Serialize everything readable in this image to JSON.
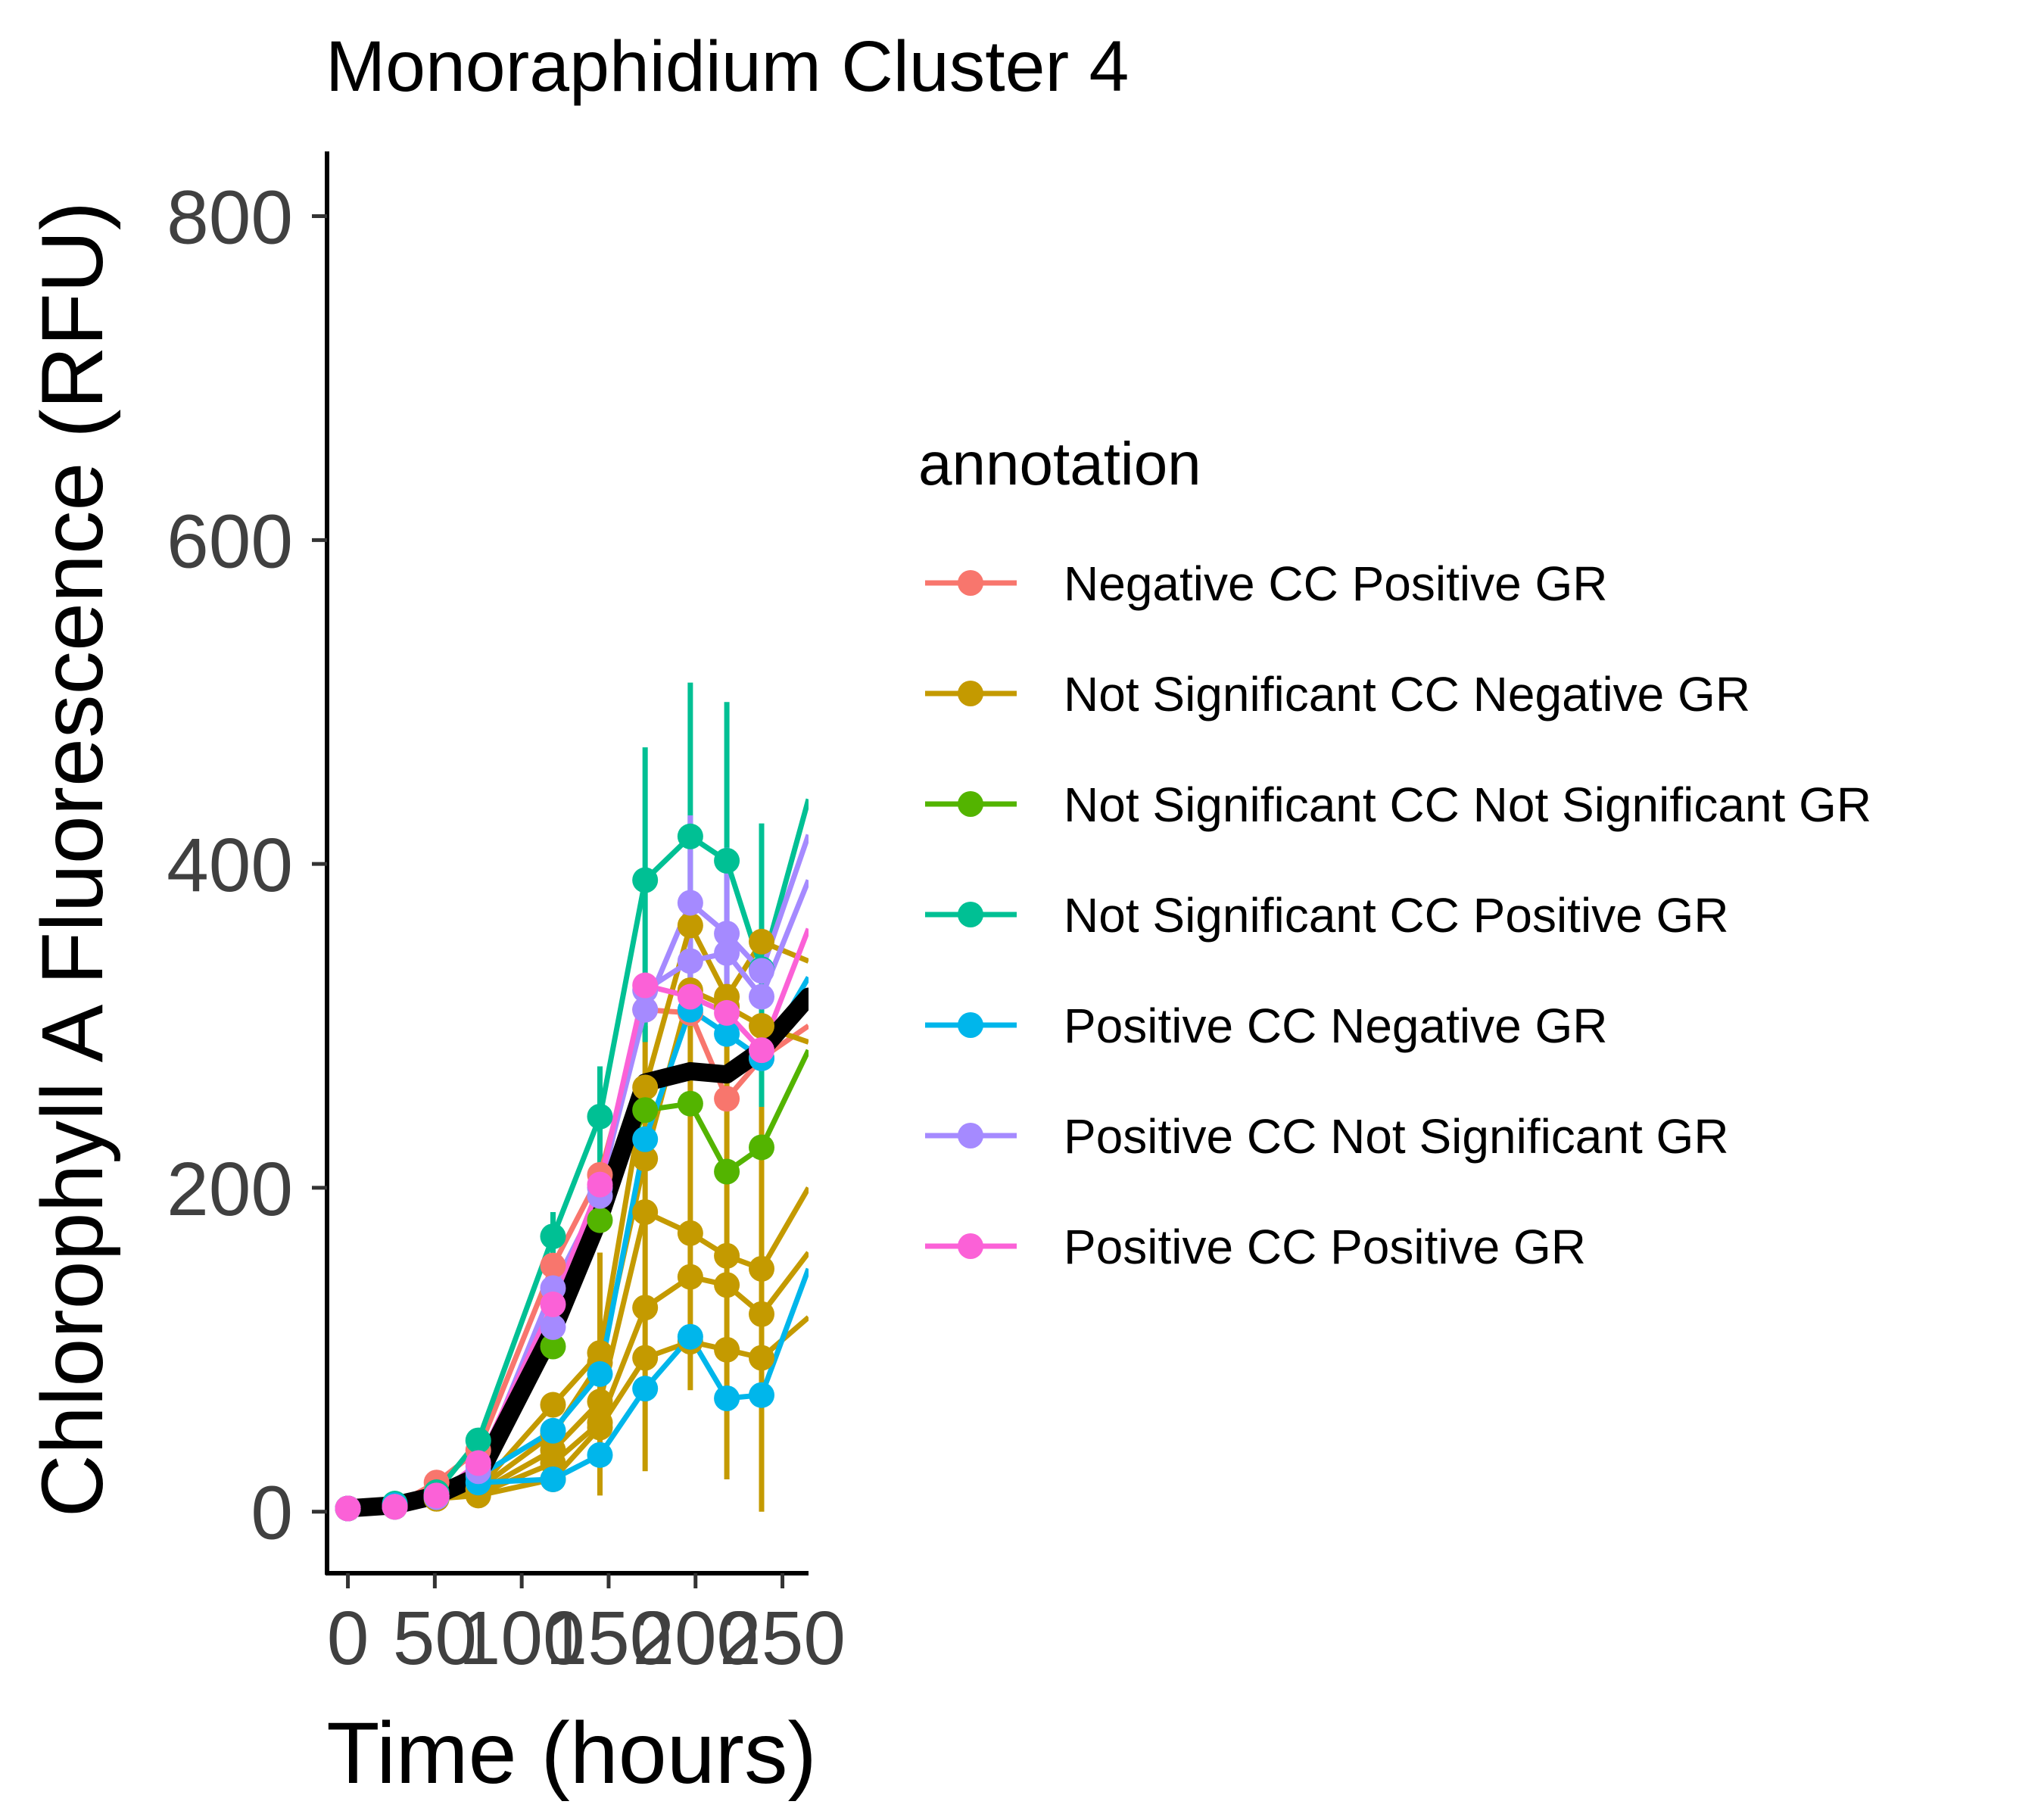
{
  "chart_data": {
    "type": "line",
    "title": "Monoraphidium Cluster 4",
    "xlabel": "Time (hours)",
    "ylabel": "Chlorophyll A Fluorescence (RFU)",
    "xlim": [
      -12,
      265
    ],
    "ylim": [
      -38,
      840
    ],
    "x_ticks": [
      0,
      50,
      100,
      150,
      200,
      250
    ],
    "x_tick_labels": [
      "0",
      "50",
      "100",
      "150",
      "200",
      "250"
    ],
    "y_ticks": [
      0,
      200,
      400,
      600,
      800
    ],
    "y_tick_labels": [
      "0",
      "200",
      "400",
      "600",
      "800"
    ],
    "grid": false,
    "legend": {
      "title": "annotation",
      "position": "right"
    },
    "x": [
      0,
      27,
      51,
      75,
      118,
      145,
      171,
      197,
      218,
      238
    ],
    "series": [
      {
        "name": "Negative CC Positive GR",
        "color": "#F8766D",
        "values": [
          [
            2,
            4,
            18,
            38,
            152,
            208,
            310,
            308,
            255,
            280
          ]
        ],
        "end": [
          [
            265,
            300
          ]
        ]
      },
      {
        "name": "Not Significant CC Negative GR",
        "color": "#C49A00",
        "values": [
          [
            2,
            4,
            10,
            14,
            66,
            98,
            262,
            362,
            318,
            352
          ],
          [
            2,
            4,
            10,
            14,
            48,
            92,
            218,
            322,
            312,
            300
          ],
          [
            2,
            3,
            9,
            12,
            38,
            68,
            185,
            172,
            158,
            150
          ],
          [
            2,
            3,
            8,
            11,
            30,
            55,
            126,
            145,
            140,
            122
          ],
          [
            2,
            3,
            8,
            10,
            20,
            52,
            95,
            105,
            100,
            95
          ]
        ],
        "end": [
          [
            265,
            340
          ],
          [
            265,
            290
          ],
          [
            265,
            200
          ],
          [
            265,
            160
          ],
          [
            265,
            120
          ]
        ],
        "errors": [
          {
            "x": 145,
            "lo": 10,
            "hi": 160
          },
          {
            "x": 171,
            "lo": 25,
            "hi": 300
          },
          {
            "x": 197,
            "lo": 75,
            "hi": 340
          },
          {
            "x": 218,
            "lo": 20,
            "hi": 300
          },
          {
            "x": 238,
            "lo": 0,
            "hi": 320
          }
        ]
      },
      {
        "name": "Not Significant CC Not Significant GR",
        "color": "#53B400",
        "values": [
          [
            2,
            4,
            10,
            24,
            102,
            180,
            248,
            252,
            210,
            225
          ]
        ],
        "end": [
          [
            265,
            285
          ]
        ]
      },
      {
        "name": "Not Significant CC Positive GR",
        "color": "#00C094",
        "values": [
          [
            2,
            5,
            12,
            44,
            170,
            244,
            390,
            417,
            402,
            335
          ]
        ],
        "end": [
          [
            265,
            440
          ]
        ],
        "errors": [
          {
            "x": 118,
            "lo": 150,
            "hi": 185
          },
          {
            "x": 145,
            "lo": 200,
            "hi": 275
          },
          {
            "x": 171,
            "lo": 290,
            "hi": 472
          },
          {
            "x": 197,
            "lo": 330,
            "hi": 512
          },
          {
            "x": 218,
            "lo": 300,
            "hi": 500
          },
          {
            "x": 238,
            "lo": 250,
            "hi": 425
          }
        ]
      },
      {
        "name": "Positive CC Negative GR",
        "color": "#00B6EB",
        "values": [
          [
            2,
            3,
            9,
            18,
            20,
            35,
            76,
            108,
            70,
            72
          ],
          [
            2,
            4,
            10,
            22,
            50,
            85,
            230,
            310,
            295,
            280
          ]
        ],
        "end": [
          [
            265,
            150
          ],
          [
            265,
            330
          ]
        ]
      },
      {
        "name": "Positive CC Not Significant GR",
        "color": "#A58AFF",
        "values": [
          [
            2,
            3,
            10,
            28,
            114,
            200,
            310,
            376,
            357,
            334
          ],
          [
            2,
            3,
            9,
            25,
            138,
            195,
            322,
            340,
            345,
            318
          ]
        ],
        "end": [
          [
            265,
            418
          ],
          [
            265,
            390
          ]
        ],
        "errors": [
          {
            "x": 197,
            "lo": 300,
            "hi": 430
          },
          {
            "x": 218,
            "lo": 310,
            "hi": 410
          }
        ]
      },
      {
        "name": "Positive CC Positive GR",
        "color": "#FB61D7",
        "values": [
          [
            2,
            3,
            10,
            30,
            128,
            202,
            325,
            318,
            308,
            285
          ]
        ],
        "end": [
          [
            265,
            360
          ]
        ]
      }
    ],
    "mean_series": {
      "color": "#000000",
      "values": [
        2,
        4,
        10,
        22,
        112,
        182,
        265,
        272,
        270,
        285
      ],
      "end": [
        265,
        318
      ]
    }
  }
}
